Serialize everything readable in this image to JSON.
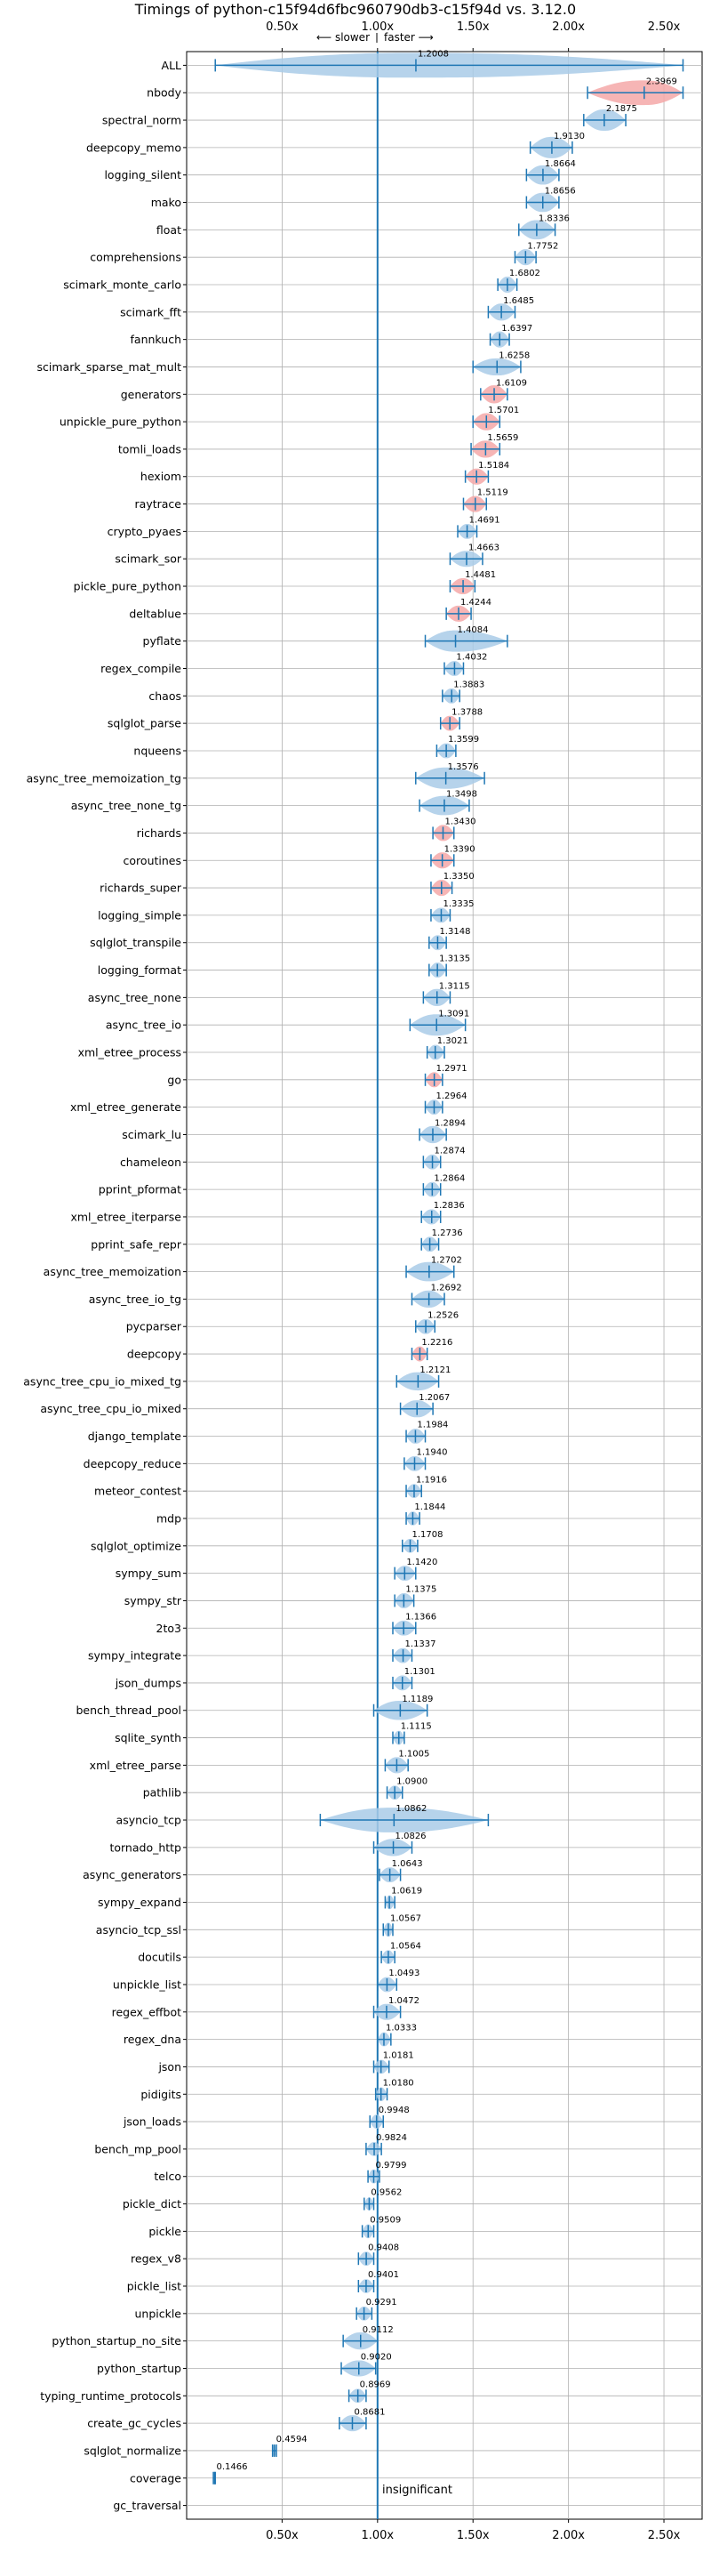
{
  "chart_data": {
    "type": "violin",
    "title": "Timings of python-c15f94d6fbc960790db3-c15f94d vs. 3.12.0",
    "subtitle_left": "⟵ slower",
    "subtitle_right": "faster ⟶",
    "xlim": [
      0.0,
      2.5
    ],
    "xticks": [
      0.5,
      1.0,
      1.5,
      2.0,
      2.5
    ],
    "xtick_labels": [
      "0.50x",
      "1.00x",
      "1.50x",
      "2.00x",
      "2.50x"
    ],
    "reference_line": 1.0,
    "insignificant_label": "insignificant",
    "grid": true,
    "colors": {
      "faster": "#a9cbe8",
      "slower": "#f4a8a8",
      "line": "#1f77b4",
      "grid": "#b0b0b0"
    },
    "series": [
      {
        "name": "ALL",
        "value": "1.2008",
        "median": 1.2008,
        "lo": 0.15,
        "hi": 2.6,
        "tone": "blue",
        "width": 0.35
      },
      {
        "name": "nbody",
        "value": "2.3969",
        "median": 2.3969,
        "lo": 2.1,
        "hi": 2.6,
        "tone": "red",
        "width": 0.25
      },
      {
        "name": "spectral_norm",
        "value": "2.1875",
        "median": 2.1875,
        "lo": 2.08,
        "hi": 2.3,
        "tone": "blue",
        "width": 0.1
      },
      {
        "name": "deepcopy_memo",
        "value": "1.9130",
        "median": 1.913,
        "lo": 1.8,
        "hi": 2.02,
        "tone": "blue",
        "width": 0.1
      },
      {
        "name": "logging_silent",
        "value": "1.8664",
        "median": 1.8664,
        "lo": 1.78,
        "hi": 1.95,
        "tone": "blue",
        "width": 0.08
      },
      {
        "name": "mako",
        "value": "1.8656",
        "median": 1.8656,
        "lo": 1.78,
        "hi": 1.95,
        "tone": "blue",
        "width": 0.08
      },
      {
        "name": "float",
        "value": "1.8336",
        "median": 1.8336,
        "lo": 1.74,
        "hi": 1.93,
        "tone": "blue",
        "width": 0.08
      },
      {
        "name": "comprehensions",
        "value": "1.7752",
        "median": 1.7752,
        "lo": 1.72,
        "hi": 1.83,
        "tone": "blue",
        "width": 0.05
      },
      {
        "name": "scimark_monte_carlo",
        "value": "1.6802",
        "median": 1.6802,
        "lo": 1.63,
        "hi": 1.73,
        "tone": "blue",
        "width": 0.05
      },
      {
        "name": "scimark_fft",
        "value": "1.6485",
        "median": 1.6485,
        "lo": 1.58,
        "hi": 1.72,
        "tone": "blue",
        "width": 0.06
      },
      {
        "name": "fannkuch",
        "value": "1.6397",
        "median": 1.6397,
        "lo": 1.59,
        "hi": 1.69,
        "tone": "blue",
        "width": 0.05
      },
      {
        "name": "scimark_sparse_mat_mult",
        "value": "1.6258",
        "median": 1.6258,
        "lo": 1.5,
        "hi": 1.75,
        "tone": "blue",
        "width": 0.06
      },
      {
        "name": "generators",
        "value": "1.6109",
        "median": 1.6109,
        "lo": 1.54,
        "hi": 1.68,
        "tone": "red",
        "width": 0.07
      },
      {
        "name": "unpickle_pure_python",
        "value": "1.5701",
        "median": 1.5701,
        "lo": 1.5,
        "hi": 1.64,
        "tone": "red",
        "width": 0.06
      },
      {
        "name": "tomli_loads",
        "value": "1.5659",
        "median": 1.5659,
        "lo": 1.49,
        "hi": 1.64,
        "tone": "red",
        "width": 0.06
      },
      {
        "name": "hexiom",
        "value": "1.5184",
        "median": 1.5184,
        "lo": 1.46,
        "hi": 1.58,
        "tone": "red",
        "width": 0.05
      },
      {
        "name": "raytrace",
        "value": "1.5119",
        "median": 1.5119,
        "lo": 1.45,
        "hi": 1.57,
        "tone": "red",
        "width": 0.05
      },
      {
        "name": "crypto_pyaes",
        "value": "1.4691",
        "median": 1.4691,
        "lo": 1.42,
        "hi": 1.52,
        "tone": "blue",
        "width": 0.04
      },
      {
        "name": "scimark_sor",
        "value": "1.4663",
        "median": 1.4663,
        "lo": 1.38,
        "hi": 1.55,
        "tone": "blue",
        "width": 0.05
      },
      {
        "name": "pickle_pure_python",
        "value": "1.4481",
        "median": 1.4481,
        "lo": 1.38,
        "hi": 1.51,
        "tone": "red",
        "width": 0.05
      },
      {
        "name": "deltablue",
        "value": "1.4244",
        "median": 1.4244,
        "lo": 1.36,
        "hi": 1.49,
        "tone": "red",
        "width": 0.05
      },
      {
        "name": "pyflate",
        "value": "1.4084",
        "median": 1.4084,
        "lo": 1.25,
        "hi": 1.68,
        "tone": "blue",
        "width": 0.1
      },
      {
        "name": "regex_compile",
        "value": "1.4032",
        "median": 1.4032,
        "lo": 1.35,
        "hi": 1.45,
        "tone": "blue",
        "width": 0.04
      },
      {
        "name": "chaos",
        "value": "1.3883",
        "median": 1.3883,
        "lo": 1.34,
        "hi": 1.43,
        "tone": "blue",
        "width": 0.04
      },
      {
        "name": "sqlglot_parse",
        "value": "1.3788",
        "median": 1.3788,
        "lo": 1.33,
        "hi": 1.43,
        "tone": "red",
        "width": 0.04
      },
      {
        "name": "nqueens",
        "value": "1.3599",
        "median": 1.3599,
        "lo": 1.31,
        "hi": 1.41,
        "tone": "blue",
        "width": 0.04
      },
      {
        "name": "async_tree_memoization_tg",
        "value": "1.3576",
        "median": 1.3576,
        "lo": 1.2,
        "hi": 1.56,
        "tone": "blue",
        "width": 0.1
      },
      {
        "name": "async_tree_none_tg",
        "value": "1.3498",
        "median": 1.3498,
        "lo": 1.22,
        "hi": 1.48,
        "tone": "blue",
        "width": 0.08
      },
      {
        "name": "richards",
        "value": "1.3430",
        "median": 1.343,
        "lo": 1.29,
        "hi": 1.4,
        "tone": "red",
        "width": 0.05
      },
      {
        "name": "coroutines",
        "value": "1.3390",
        "median": 1.339,
        "lo": 1.28,
        "hi": 1.4,
        "tone": "red",
        "width": 0.05
      },
      {
        "name": "richards_super",
        "value": "1.3350",
        "median": 1.335,
        "lo": 1.28,
        "hi": 1.39,
        "tone": "red",
        "width": 0.05
      },
      {
        "name": "logging_simple",
        "value": "1.3335",
        "median": 1.3335,
        "lo": 1.28,
        "hi": 1.38,
        "tone": "blue",
        "width": 0.04
      },
      {
        "name": "sqlglot_transpile",
        "value": "1.3148",
        "median": 1.3148,
        "lo": 1.27,
        "hi": 1.36,
        "tone": "blue",
        "width": 0.04
      },
      {
        "name": "logging_format",
        "value": "1.3135",
        "median": 1.3135,
        "lo": 1.27,
        "hi": 1.36,
        "tone": "blue",
        "width": 0.04
      },
      {
        "name": "async_tree_none",
        "value": "1.3115",
        "median": 1.3115,
        "lo": 1.24,
        "hi": 1.38,
        "tone": "blue",
        "width": 0.06
      },
      {
        "name": "async_tree_io",
        "value": "1.3091",
        "median": 1.3091,
        "lo": 1.17,
        "hi": 1.46,
        "tone": "blue",
        "width": 0.1
      },
      {
        "name": "xml_etree_process",
        "value": "1.3021",
        "median": 1.3021,
        "lo": 1.26,
        "hi": 1.35,
        "tone": "blue",
        "width": 0.04
      },
      {
        "name": "go",
        "value": "1.2971",
        "median": 1.2971,
        "lo": 1.25,
        "hi": 1.34,
        "tone": "red",
        "width": 0.04
      },
      {
        "name": "xml_etree_generate",
        "value": "1.2964",
        "median": 1.2964,
        "lo": 1.25,
        "hi": 1.34,
        "tone": "blue",
        "width": 0.04
      },
      {
        "name": "scimark_lu",
        "value": "1.2894",
        "median": 1.2894,
        "lo": 1.22,
        "hi": 1.36,
        "tone": "blue",
        "width": 0.06
      },
      {
        "name": "chameleon",
        "value": "1.2874",
        "median": 1.2874,
        "lo": 1.24,
        "hi": 1.33,
        "tone": "blue",
        "width": 0.04
      },
      {
        "name": "pprint_pformat",
        "value": "1.2864",
        "median": 1.2864,
        "lo": 1.24,
        "hi": 1.33,
        "tone": "blue",
        "width": 0.04
      },
      {
        "name": "xml_etree_iterparse",
        "value": "1.2836",
        "median": 1.2836,
        "lo": 1.23,
        "hi": 1.33,
        "tone": "blue",
        "width": 0.04
      },
      {
        "name": "pprint_safe_repr",
        "value": "1.2736",
        "median": 1.2736,
        "lo": 1.23,
        "hi": 1.32,
        "tone": "blue",
        "width": 0.04
      },
      {
        "name": "async_tree_memoization",
        "value": "1.2702",
        "median": 1.2702,
        "lo": 1.15,
        "hi": 1.4,
        "tone": "blue",
        "width": 0.08
      },
      {
        "name": "async_tree_io_tg",
        "value": "1.2692",
        "median": 1.2692,
        "lo": 1.18,
        "hi": 1.35,
        "tone": "blue",
        "width": 0.06
      },
      {
        "name": "pycparser",
        "value": "1.2526",
        "median": 1.2526,
        "lo": 1.2,
        "hi": 1.3,
        "tone": "blue",
        "width": 0.04
      },
      {
        "name": "deepcopy",
        "value": "1.2216",
        "median": 1.2216,
        "lo": 1.18,
        "hi": 1.26,
        "tone": "red",
        "width": 0.04
      },
      {
        "name": "async_tree_cpu_io_mixed_tg",
        "value": "1.2121",
        "median": 1.2121,
        "lo": 1.1,
        "hi": 1.32,
        "tone": "blue",
        "width": 0.07
      },
      {
        "name": "async_tree_cpu_io_mixed",
        "value": "1.2067",
        "median": 1.2067,
        "lo": 1.12,
        "hi": 1.29,
        "tone": "blue",
        "width": 0.06
      },
      {
        "name": "django_template",
        "value": "1.1984",
        "median": 1.1984,
        "lo": 1.15,
        "hi": 1.25,
        "tone": "blue",
        "width": 0.04
      },
      {
        "name": "deepcopy_reduce",
        "value": "1.1940",
        "median": 1.194,
        "lo": 1.14,
        "hi": 1.25,
        "tone": "blue",
        "width": 0.04
      },
      {
        "name": "meteor_contest",
        "value": "1.1916",
        "median": 1.1916,
        "lo": 1.15,
        "hi": 1.23,
        "tone": "blue",
        "width": 0.03
      },
      {
        "name": "mdp",
        "value": "1.1844",
        "median": 1.1844,
        "lo": 1.15,
        "hi": 1.22,
        "tone": "blue",
        "width": 0.03
      },
      {
        "name": "sqlglot_optimize",
        "value": "1.1708",
        "median": 1.1708,
        "lo": 1.13,
        "hi": 1.21,
        "tone": "blue",
        "width": 0.03
      },
      {
        "name": "sympy_sum",
        "value": "1.1420",
        "median": 1.142,
        "lo": 1.09,
        "hi": 1.2,
        "tone": "blue",
        "width": 0.04
      },
      {
        "name": "sympy_str",
        "value": "1.1375",
        "median": 1.1375,
        "lo": 1.09,
        "hi": 1.19,
        "tone": "blue",
        "width": 0.04
      },
      {
        "name": "2to3",
        "value": "1.1366",
        "median": 1.1366,
        "lo": 1.08,
        "hi": 1.2,
        "tone": "blue",
        "width": 0.04
      },
      {
        "name": "sympy_integrate",
        "value": "1.1337",
        "median": 1.1337,
        "lo": 1.08,
        "hi": 1.18,
        "tone": "blue",
        "width": 0.04
      },
      {
        "name": "json_dumps",
        "value": "1.1301",
        "median": 1.1301,
        "lo": 1.08,
        "hi": 1.18,
        "tone": "blue",
        "width": 0.04
      },
      {
        "name": "bench_thread_pool",
        "value": "1.1189",
        "median": 1.1189,
        "lo": 0.98,
        "hi": 1.26,
        "tone": "blue",
        "width": 0.08
      },
      {
        "name": "sqlite_synth",
        "value": "1.1115",
        "median": 1.1115,
        "lo": 1.08,
        "hi": 1.14,
        "tone": "blue",
        "width": 0.03
      },
      {
        "name": "xml_etree_parse",
        "value": "1.1005",
        "median": 1.1005,
        "lo": 1.04,
        "hi": 1.16,
        "tone": "blue",
        "width": 0.05
      },
      {
        "name": "pathlib",
        "value": "1.0900",
        "median": 1.09,
        "lo": 1.05,
        "hi": 1.13,
        "tone": "blue",
        "width": 0.03
      },
      {
        "name": "asyncio_tcp",
        "value": "1.0862",
        "median": 1.0862,
        "lo": 0.7,
        "hi": 1.58,
        "tone": "blue",
        "width": 0.2
      },
      {
        "name": "tornado_http",
        "value": "1.0826",
        "median": 1.0826,
        "lo": 0.98,
        "hi": 1.18,
        "tone": "blue",
        "width": 0.06
      },
      {
        "name": "async_generators",
        "value": "1.0643",
        "median": 1.0643,
        "lo": 1.01,
        "hi": 1.12,
        "tone": "blue",
        "width": 0.04
      },
      {
        "name": "sympy_expand",
        "value": "1.0619",
        "median": 1.0619,
        "lo": 1.04,
        "hi": 1.09,
        "tone": "blue",
        "width": 0.03
      },
      {
        "name": "asyncio_tcp_ssl",
        "value": "1.0567",
        "median": 1.0567,
        "lo": 1.03,
        "hi": 1.08,
        "tone": "blue",
        "width": 0.03
      },
      {
        "name": "docutils",
        "value": "1.0564",
        "median": 1.0564,
        "lo": 1.02,
        "hi": 1.09,
        "tone": "blue",
        "width": 0.03
      },
      {
        "name": "unpickle_list",
        "value": "1.0493",
        "median": 1.0493,
        "lo": 1.0,
        "hi": 1.1,
        "tone": "blue",
        "width": 0.04
      },
      {
        "name": "regex_effbot",
        "value": "1.0472",
        "median": 1.0472,
        "lo": 0.98,
        "hi": 1.12,
        "tone": "blue",
        "width": 0.05
      },
      {
        "name": "regex_dna",
        "value": "1.0333",
        "median": 1.0333,
        "lo": 1.0,
        "hi": 1.07,
        "tone": "blue",
        "width": 0.03
      },
      {
        "name": "json",
        "value": "1.0181",
        "median": 1.0181,
        "lo": 0.98,
        "hi": 1.06,
        "tone": "blue",
        "width": 0.03
      },
      {
        "name": "pidigits",
        "value": "1.0180",
        "median": 1.018,
        "lo": 0.99,
        "hi": 1.05,
        "tone": "blue",
        "width": 0.03
      },
      {
        "name": "json_loads",
        "value": "0.9948",
        "median": 0.9948,
        "lo": 0.96,
        "hi": 1.03,
        "tone": "blue",
        "width": 0.03
      },
      {
        "name": "bench_mp_pool",
        "value": "0.9824",
        "median": 0.9824,
        "lo": 0.94,
        "hi": 1.02,
        "tone": "blue",
        "width": 0.03
      },
      {
        "name": "telco",
        "value": "0.9799",
        "median": 0.9799,
        "lo": 0.95,
        "hi": 1.01,
        "tone": "blue",
        "width": 0.03
      },
      {
        "name": "pickle_dict",
        "value": "0.9562",
        "median": 0.9562,
        "lo": 0.93,
        "hi": 0.98,
        "tone": "blue",
        "width": 0.02
      },
      {
        "name": "pickle",
        "value": "0.9509",
        "median": 0.9509,
        "lo": 0.92,
        "hi": 0.98,
        "tone": "blue",
        "width": 0.03
      },
      {
        "name": "regex_v8",
        "value": "0.9408",
        "median": 0.9408,
        "lo": 0.9,
        "hi": 0.98,
        "tone": "blue",
        "width": 0.03
      },
      {
        "name": "pickle_list",
        "value": "0.9401",
        "median": 0.9401,
        "lo": 0.9,
        "hi": 0.98,
        "tone": "blue",
        "width": 0.03
      },
      {
        "name": "unpickle",
        "value": "0.9291",
        "median": 0.9291,
        "lo": 0.89,
        "hi": 0.97,
        "tone": "blue",
        "width": 0.03
      },
      {
        "name": "python_startup_no_site",
        "value": "0.9112",
        "median": 0.9112,
        "lo": 0.82,
        "hi": 1.0,
        "tone": "blue",
        "width": 0.06
      },
      {
        "name": "python_startup",
        "value": "0.9020",
        "median": 0.902,
        "lo": 0.81,
        "hi": 0.99,
        "tone": "blue",
        "width": 0.05
      },
      {
        "name": "typing_runtime_protocols",
        "value": "0.8969",
        "median": 0.8969,
        "lo": 0.85,
        "hi": 0.94,
        "tone": "blue",
        "width": 0.03
      },
      {
        "name": "create_gc_cycles",
        "value": "0.8681",
        "median": 0.8681,
        "lo": 0.8,
        "hi": 0.94,
        "tone": "blue",
        "width": 0.05
      },
      {
        "name": "sqlglot_normalize",
        "value": "0.4594",
        "median": 0.4594,
        "lo": 0.45,
        "hi": 0.47,
        "tone": "blue",
        "width": 0.01
      },
      {
        "name": "coverage",
        "value": "0.1466",
        "median": 0.1466,
        "lo": 0.14,
        "hi": 0.15,
        "tone": "blue",
        "width": 0.01
      },
      {
        "name": "gc_traversal",
        "value": "",
        "median": null,
        "lo": null,
        "hi": null,
        "tone": "blue",
        "width": 0
      }
    ]
  }
}
